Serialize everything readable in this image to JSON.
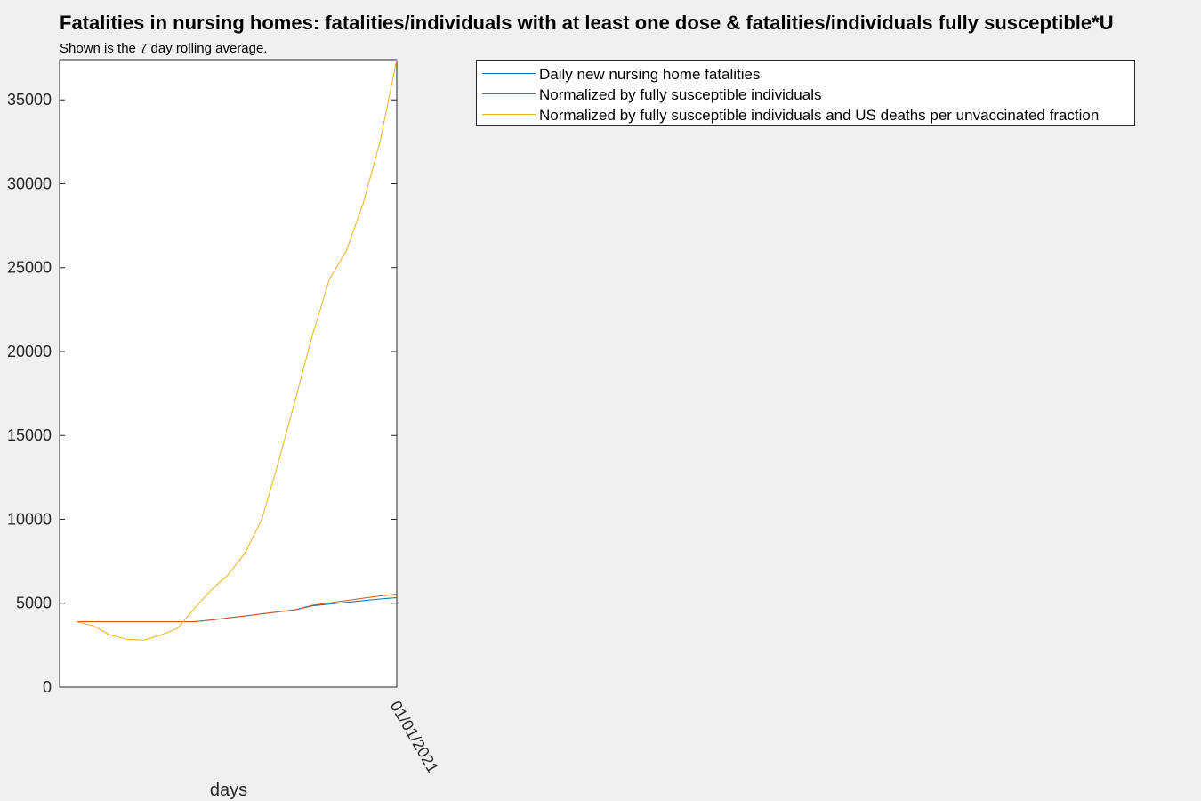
{
  "chart_data": {
    "type": "line",
    "title": "Fatalities in nursing homes: fatalities/individuals with at least one dose & fatalities/individuals fully susceptible*U",
    "subtitle": "Shown is the 7 day rolling average.",
    "xlabel": "days",
    "ylabel": "",
    "x_tick_labels": [
      "01/01/2021"
    ],
    "y_ticks": [
      0,
      5000,
      10000,
      15000,
      20000,
      25000,
      30000,
      35000
    ],
    "ylim": [
      0,
      37400
    ],
    "grid": false,
    "legend_position": "top-right",
    "series": [
      {
        "name": "Daily new nursing home fatalities",
        "color": "#0072bd",
        "values": [
          3900,
          3900,
          3900,
          3900,
          3900,
          3900,
          3900,
          3900,
          4000,
          4120,
          4240,
          4370,
          4490,
          4610,
          4850,
          4950,
          5050,
          5150,
          5250,
          5330
        ]
      },
      {
        "name": "Normalized by fully susceptible individuals",
        "color": "#d95319",
        "values": [
          3900,
          3900,
          3900,
          3900,
          3900,
          3900,
          3900,
          3900,
          4000,
          4120,
          4240,
          4370,
          4490,
          4620,
          4880,
          5020,
          5160,
          5300,
          5440,
          5540
        ]
      },
      {
        "name": "Normalized by fully susceptible individuals and US deaths per unvaccinated fraction",
        "color": "#edb120",
        "values": [
          3900,
          3650,
          3100,
          2850,
          2800,
          3100,
          3500,
          4700,
          5800,
          6700,
          8000,
          10000,
          13500,
          17200,
          21000,
          24300,
          26000,
          28800,
          32500,
          37400
        ]
      }
    ]
  }
}
